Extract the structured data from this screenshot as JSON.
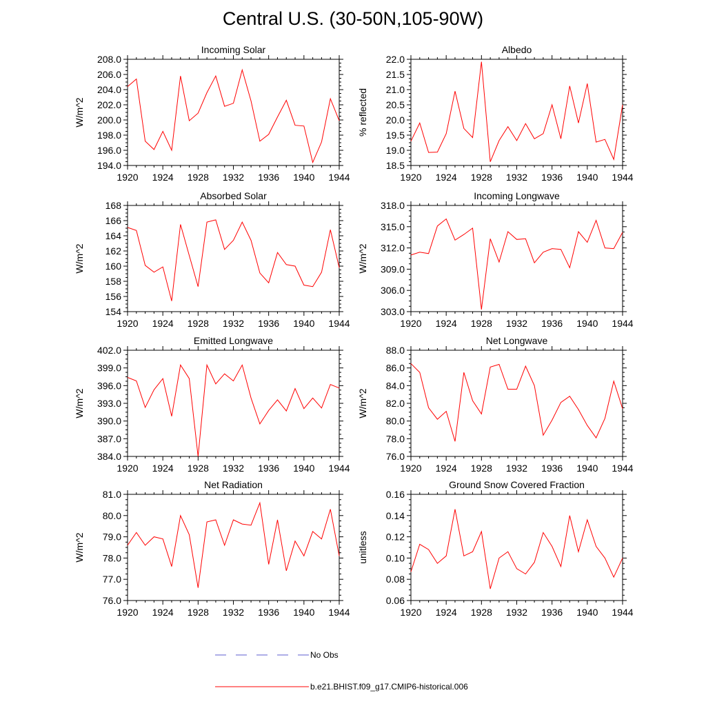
{
  "title": "Central U.S. (30-50N,105-90W)",
  "colors": {
    "model": "#ff0000",
    "obs": "#5b5bcf"
  },
  "legend": {
    "obs_label": "No Obs",
    "model_label": "b.e21.BHIST.f09_g17.CMIP6-historical.006"
  },
  "chart_data": [
    {
      "type": "line",
      "title": "Incoming Solar",
      "ylabel": "W/m^2",
      "x": [
        1920,
        1921,
        1922,
        1923,
        1924,
        1925,
        1926,
        1927,
        1928,
        1929,
        1930,
        1931,
        1932,
        1933,
        1934,
        1935,
        1936,
        1937,
        1938,
        1939,
        1940,
        1941,
        1942,
        1943,
        1944
      ],
      "values": [
        204.4,
        205.4,
        197.2,
        196.1,
        198.5,
        196.0,
        205.8,
        199.9,
        200.9,
        203.6,
        205.8,
        201.8,
        202.2,
        206.6,
        202.5,
        197.2,
        198.1,
        200.4,
        202.6,
        199.3,
        199.2,
        194.4,
        197.1,
        202.8,
        199.9
      ],
      "xlim": [
        1920,
        1944
      ],
      "ylim": [
        194.0,
        208.0
      ],
      "xticks": [
        "1920",
        "1924",
        "1928",
        "1932",
        "1936",
        "1940",
        "1944"
      ],
      "yticks": [
        "194.0",
        "196.0",
        "198.0",
        "200.0",
        "202.0",
        "204.0",
        "206.0",
        "208.0"
      ]
    },
    {
      "type": "line",
      "title": "Albedo",
      "ylabel": "% reflected",
      "x": [
        1920,
        1921,
        1922,
        1923,
        1924,
        1925,
        1926,
        1927,
        1928,
        1929,
        1930,
        1931,
        1932,
        1933,
        1934,
        1935,
        1936,
        1937,
        1938,
        1939,
        1940,
        1941,
        1942,
        1943,
        1944
      ],
      "values": [
        19.3,
        19.9,
        18.93,
        18.94,
        19.55,
        20.95,
        19.72,
        19.42,
        21.92,
        18.62,
        19.32,
        19.78,
        19.32,
        19.88,
        19.38,
        19.55,
        20.5,
        19.38,
        21.12,
        19.9,
        21.2,
        19.27,
        19.36,
        18.7,
        20.5
      ],
      "xlim": [
        1920,
        1944
      ],
      "ylim": [
        18.5,
        22.0
      ],
      "xticks": [
        "1920",
        "1924",
        "1928",
        "1932",
        "1936",
        "1940",
        "1944"
      ],
      "yticks": [
        "18.5",
        "19.0",
        "19.5",
        "20.0",
        "20.5",
        "21.0",
        "21.5",
        "22.0"
      ]
    },
    {
      "type": "line",
      "title": "Absorbed Solar",
      "ylabel": "W/m^2",
      "x": [
        1920,
        1921,
        1922,
        1923,
        1924,
        1925,
        1926,
        1927,
        1928,
        1929,
        1930,
        1931,
        1932,
        1933,
        1934,
        1935,
        1936,
        1937,
        1938,
        1939,
        1940,
        1941,
        1942,
        1943,
        1944
      ],
      "values": [
        165.1,
        164.7,
        160.1,
        159.2,
        159.9,
        155.4,
        165.5,
        161.4,
        157.3,
        165.8,
        166.1,
        162.2,
        163.4,
        165.8,
        163.4,
        159.1,
        157.8,
        161.8,
        160.2,
        160.0,
        157.5,
        157.3,
        159.2,
        164.8,
        159.8
      ],
      "xlim": [
        1920,
        1944
      ],
      "ylim": [
        154,
        168
      ],
      "xticks": [
        "1920",
        "1924",
        "1928",
        "1932",
        "1936",
        "1940",
        "1944"
      ],
      "yticks": [
        "154",
        "156",
        "158",
        "160",
        "162",
        "164",
        "166",
        "168"
      ]
    },
    {
      "type": "line",
      "title": "Incoming Longwave",
      "ylabel": "W/m^2",
      "x": [
        1920,
        1921,
        1922,
        1923,
        1924,
        1925,
        1926,
        1927,
        1928,
        1929,
        1930,
        1931,
        1932,
        1933,
        1934,
        1935,
        1936,
        1937,
        1938,
        1939,
        1940,
        1941,
        1942,
        1943,
        1944
      ],
      "values": [
        311.0,
        311.4,
        311.2,
        315.1,
        316.1,
        313.1,
        313.9,
        314.8,
        303.3,
        313.3,
        310.0,
        314.3,
        313.2,
        313.3,
        309.9,
        311.4,
        311.9,
        311.8,
        309.2,
        314.3,
        312.8,
        315.9,
        312.0,
        311.9,
        314.2
      ],
      "xlim": [
        1920,
        1944
      ],
      "ylim": [
        303.0,
        318.0
      ],
      "xticks": [
        "1920",
        "1924",
        "1928",
        "1932",
        "1936",
        "1940",
        "1944"
      ],
      "yticks": [
        "303.0",
        "306.0",
        "309.0",
        "312.0",
        "315.0",
        "318.0"
      ]
    },
    {
      "type": "line",
      "title": "Emitted Longwave",
      "ylabel": "W/m^2",
      "x": [
        1920,
        1921,
        1922,
        1923,
        1924,
        1925,
        1926,
        1927,
        1928,
        1929,
        1930,
        1931,
        1932,
        1933,
        1934,
        1935,
        1936,
        1937,
        1938,
        1939,
        1940,
        1941,
        1942,
        1943,
        1944
      ],
      "values": [
        397.4,
        396.8,
        392.3,
        395.3,
        397.2,
        390.8,
        399.5,
        397.2,
        384.0,
        399.5,
        396.3,
        398.0,
        396.8,
        399.5,
        393.9,
        389.5,
        391.8,
        393.6,
        391.7,
        395.5,
        392.1,
        393.9,
        392.2,
        396.2,
        395.6
      ],
      "xlim": [
        1920,
        1944
      ],
      "ylim": [
        384.0,
        402.0
      ],
      "xticks": [
        "1920",
        "1924",
        "1928",
        "1932",
        "1936",
        "1940",
        "1944"
      ],
      "yticks": [
        "384.0",
        "387.0",
        "390.0",
        "393.0",
        "396.0",
        "399.0",
        "402.0"
      ]
    },
    {
      "type": "line",
      "title": "Net Longwave",
      "ylabel": "W/m^2",
      "x": [
        1920,
        1921,
        1922,
        1923,
        1924,
        1925,
        1926,
        1927,
        1928,
        1929,
        1930,
        1931,
        1932,
        1933,
        1934,
        1935,
        1936,
        1937,
        1938,
        1939,
        1940,
        1941,
        1942,
        1943,
        1944
      ],
      "values": [
        86.5,
        85.5,
        81.5,
        80.2,
        81.1,
        77.7,
        85.5,
        82.3,
        80.8,
        86.1,
        86.4,
        83.6,
        83.6,
        86.2,
        84.0,
        78.4,
        80.1,
        82.1,
        82.8,
        81.3,
        79.5,
        78.1,
        80.3,
        84.5,
        81.4
      ],
      "xlim": [
        1920,
        1944
      ],
      "ylim": [
        76.0,
        88.0
      ],
      "xticks": [
        "1920",
        "1924",
        "1928",
        "1932",
        "1936",
        "1940",
        "1944"
      ],
      "yticks": [
        "76.0",
        "78.0",
        "80.0",
        "82.0",
        "84.0",
        "86.0",
        "88.0"
      ]
    },
    {
      "type": "line",
      "title": "Net Radiation",
      "ylabel": "W/m^2",
      "x": [
        1920,
        1921,
        1922,
        1923,
        1924,
        1925,
        1926,
        1927,
        1928,
        1929,
        1930,
        1931,
        1932,
        1933,
        1934,
        1935,
        1936,
        1937,
        1938,
        1939,
        1940,
        1941,
        1942,
        1943,
        1944
      ],
      "values": [
        78.6,
        79.2,
        78.6,
        79.0,
        78.9,
        77.6,
        80.0,
        79.1,
        76.6,
        79.7,
        79.8,
        78.6,
        79.8,
        79.6,
        79.55,
        80.6,
        77.7,
        79.8,
        77.4,
        78.8,
        78.1,
        79.25,
        78.9,
        80.3,
        78.1
      ],
      "xlim": [
        1920,
        1944
      ],
      "ylim": [
        76.0,
        81.0
      ],
      "xticks": [
        "1920",
        "1924",
        "1928",
        "1932",
        "1936",
        "1940",
        "1944"
      ],
      "yticks": [
        "76.0",
        "77.0",
        "78.0",
        "79.0",
        "80.0",
        "81.0"
      ]
    },
    {
      "type": "line",
      "title": "Ground Snow Covered Fraction",
      "ylabel": "unitless",
      "x": [
        1920,
        1921,
        1922,
        1923,
        1924,
        1925,
        1926,
        1927,
        1928,
        1929,
        1930,
        1931,
        1932,
        1933,
        1934,
        1935,
        1936,
        1937,
        1938,
        1939,
        1940,
        1941,
        1942,
        1943,
        1944
      ],
      "values": [
        0.087,
        0.113,
        0.108,
        0.095,
        0.102,
        0.146,
        0.102,
        0.106,
        0.125,
        0.071,
        0.1,
        0.106,
        0.09,
        0.085,
        0.096,
        0.124,
        0.111,
        0.092,
        0.14,
        0.106,
        0.136,
        0.111,
        0.1,
        0.082,
        0.1
      ],
      "xlim": [
        1920,
        1944
      ],
      "ylim": [
        0.06,
        0.16
      ],
      "xticks": [
        "1920",
        "1924",
        "1928",
        "1932",
        "1936",
        "1940",
        "1944"
      ],
      "yticks": [
        "0.06",
        "0.08",
        "0.10",
        "0.12",
        "0.14",
        "0.16"
      ]
    }
  ]
}
